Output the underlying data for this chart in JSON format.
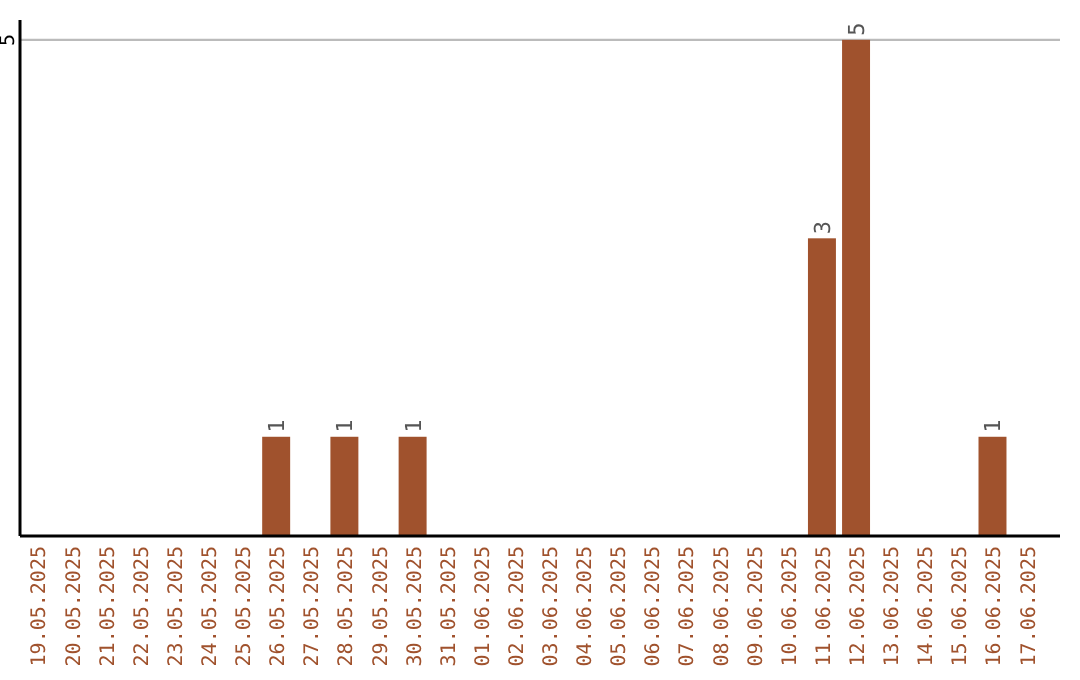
{
  "chart_data": {
    "type": "bar",
    "categories": [
      "19.05.2025",
      "20.05.2025",
      "21.05.2025",
      "22.05.2025",
      "23.05.2025",
      "24.05.2025",
      "25.05.2025",
      "26.05.2025",
      "27.05.2025",
      "28.05.2025",
      "29.05.2025",
      "30.05.2025",
      "31.05.2025",
      "01.06.2025",
      "02.06.2025",
      "03.06.2025",
      "04.06.2025",
      "05.06.2025",
      "06.06.2025",
      "07.06.2025",
      "08.06.2025",
      "09.06.2025",
      "10.06.2025",
      "11.06.2025",
      "12.06.2025",
      "13.06.2025",
      "14.06.2025",
      "15.06.2025",
      "16.06.2025",
      "17.06.2025"
    ],
    "values": [
      0,
      0,
      0,
      0,
      0,
      0,
      0,
      1,
      0,
      1,
      0,
      1,
      0,
      0,
      0,
      0,
      0,
      0,
      0,
      0,
      0,
      0,
      0,
      3,
      5,
      0,
      0,
      0,
      1,
      0
    ],
    "value_labels": [
      null,
      null,
      null,
      null,
      null,
      null,
      null,
      "1",
      null,
      "1",
      null,
      "1",
      null,
      null,
      null,
      null,
      null,
      null,
      null,
      null,
      null,
      null,
      null,
      "3",
      "5",
      null,
      null,
      null,
      "1",
      null
    ],
    "color": "#a0522d",
    "ylim": [
      0,
      5.2
    ],
    "yticks": [
      5
    ],
    "grid": "y"
  }
}
